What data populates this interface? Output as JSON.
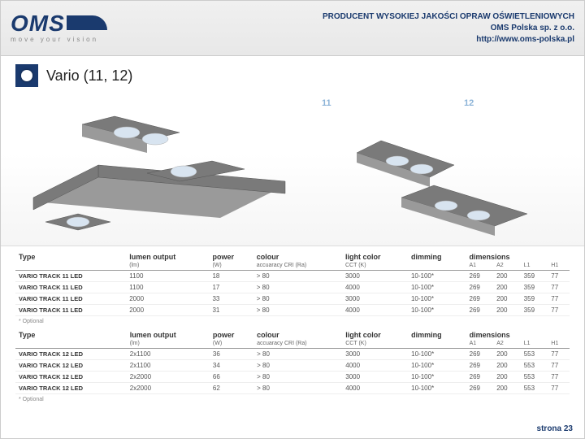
{
  "header": {
    "logo_text": "OMS",
    "logo_tagline": "move your vision",
    "line1": "PRODUCENT WYSOKIEJ JAKOŚCI OPRAW OŚWIETLENIOWYCH",
    "line2": "OMS Polska sp. z o.o.",
    "line3": "http://www.oms-polska.pl"
  },
  "section": {
    "title": "Vario (11, 12)"
  },
  "image_labels": {
    "l11": "11",
    "l12": "12"
  },
  "table1": {
    "group_headers": [
      "Type",
      "lumen output",
      "power",
      "colour",
      "light color",
      "dimming",
      "dimensions"
    ],
    "sub_headers": [
      "",
      "(lm)",
      "(W)",
      "accuaracy CRI (Ra)",
      "CCT (K)",
      "",
      "A1",
      "A2",
      "L1",
      "H1"
    ],
    "rows": [
      [
        "VARIO TRACK 11 LED",
        "1100",
        "18",
        "> 80",
        "3000",
        "10-100*",
        "269",
        "200",
        "359",
        "77"
      ],
      [
        "VARIO TRACK 11 LED",
        "1100",
        "17",
        "> 80",
        "4000",
        "10-100*",
        "269",
        "200",
        "359",
        "77"
      ],
      [
        "VARIO TRACK 11 LED",
        "2000",
        "33",
        "> 80",
        "3000",
        "10-100*",
        "269",
        "200",
        "359",
        "77"
      ],
      [
        "VARIO TRACK 11 LED",
        "2000",
        "31",
        "> 80",
        "4000",
        "10-100*",
        "269",
        "200",
        "359",
        "77"
      ]
    ],
    "optional": "* Optional"
  },
  "table2": {
    "group_headers": [
      "Type",
      "lumen output",
      "power",
      "colour",
      "light color",
      "dimming",
      "dimensions"
    ],
    "sub_headers": [
      "",
      "(lm)",
      "(W)",
      "accuaracy CRI (Ra)",
      "CCT (K)",
      "",
      "A1",
      "A2",
      "L1",
      "H1"
    ],
    "rows": [
      [
        "VARIO TRACK 12 LED",
        "2x1100",
        "36",
        "> 80",
        "3000",
        "10-100*",
        "269",
        "200",
        "553",
        "77"
      ],
      [
        "VARIO TRACK 12 LED",
        "2x1100",
        "34",
        "> 80",
        "4000",
        "10-100*",
        "269",
        "200",
        "553",
        "77"
      ],
      [
        "VARIO TRACK 12 LED",
        "2x2000",
        "66",
        "> 80",
        "3000",
        "10-100*",
        "269",
        "200",
        "553",
        "77"
      ],
      [
        "VARIO TRACK 12 LED",
        "2x2000",
        "62",
        "> 80",
        "4000",
        "10-100*",
        "269",
        "200",
        "553",
        "77"
      ]
    ],
    "optional": "* Optional"
  },
  "footer": {
    "page": "strona 23"
  }
}
